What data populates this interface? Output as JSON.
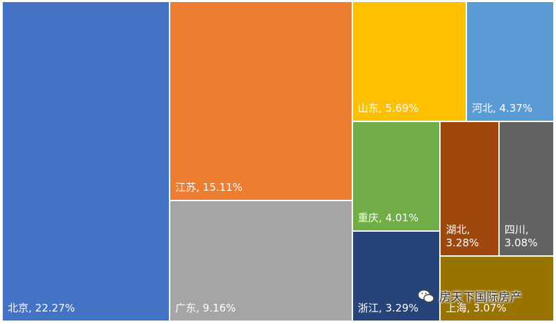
{
  "chart_data": {
    "type": "treemap",
    "categories": [
      "北京",
      "江苏",
      "广东",
      "山东",
      "河北",
      "重庆",
      "浙江",
      "湖北",
      "四川",
      "上海"
    ],
    "values": [
      22.27,
      15.11,
      9.16,
      5.69,
      4.37,
      4.01,
      3.29,
      3.28,
      3.08,
      3.07
    ],
    "value_labels": [
      "北京, 22.27%",
      "江苏, 15.11%",
      "广东, 9.16%",
      "山东, 5.69%",
      "河北, 4.37%",
      "重庆, 4.01%",
      "浙江, 3.29%",
      "湖北, 3.28%",
      "四川, 3.08%",
      "上海, 3.07%"
    ],
    "colors": [
      "#4472c4",
      "#ed7d31",
      "#a5a5a5",
      "#ffc000",
      "#5b9bd5",
      "#70ad47",
      "#264478",
      "#9e480e",
      "#636363",
      "#997300"
    ],
    "watermark": "房天下国际房产"
  }
}
